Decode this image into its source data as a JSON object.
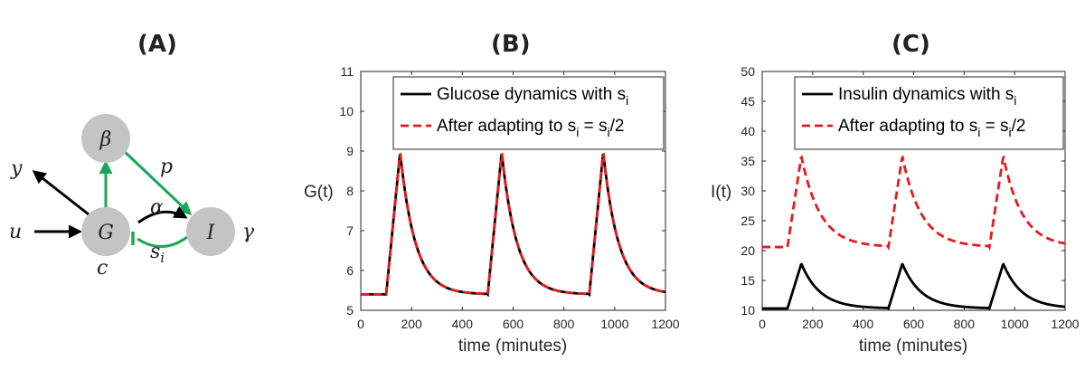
{
  "panels": {
    "a": "(A)",
    "b": "(B)",
    "c": "(C)"
  },
  "diagram": {
    "nodes": {
      "beta": "β",
      "g": "G",
      "i": "I"
    },
    "labels": {
      "y": "y",
      "u": "u",
      "p": "p",
      "alpha": "α",
      "s": "s",
      "s_sub": "i",
      "gamma": "γ",
      "c": "c"
    },
    "colors": {
      "node": "#c4c4c4",
      "green": "#1aa65a",
      "black": "#000000"
    }
  },
  "chart_data": [
    {
      "type": "line",
      "panel": "B",
      "xlabel": "time (minutes)",
      "ylabel": "G(t)",
      "xlim": [
        0,
        1200
      ],
      "ylim": [
        5,
        11
      ],
      "xticks": [
        0,
        200,
        400,
        600,
        800,
        1000,
        1200
      ],
      "yticks": [
        5,
        6,
        7,
        8,
        9,
        10,
        11
      ],
      "baseline": 5.4,
      "peak": 8.97,
      "meal_starts": [
        100,
        500,
        900
      ],
      "rise_minutes": 55,
      "decay_tau": 60,
      "legend": [
        {
          "name": "Glucose dynamics with s",
          "sub": "i",
          "tail": "",
          "color": "#000000",
          "dash": "solid"
        },
        {
          "name": "After adapting to s",
          "sub": "i",
          "tail": " = s",
          "sub2": "i",
          "tail2": "/2",
          "color": "#e8191c",
          "dash": "dashed"
        }
      ],
      "series": [
        {
          "name": "Glucose dynamics with s_i",
          "color": "#000000",
          "style": "solid"
        },
        {
          "name": "After adapting to s_i = s_i/2",
          "color": "#e8191c",
          "style": "dashed"
        }
      ]
    },
    {
      "type": "line",
      "panel": "C",
      "xlabel": "time (minutes)",
      "ylabel": "I(t)",
      "xlim": [
        0,
        1200
      ],
      "ylim": [
        10,
        50
      ],
      "xticks": [
        0,
        200,
        400,
        600,
        800,
        1000,
        1200
      ],
      "yticks": [
        10,
        15,
        20,
        25,
        30,
        35,
        40,
        45,
        50
      ],
      "meal_starts": [
        100,
        500,
        900
      ],
      "rise_minutes": 55,
      "decay_tau": 75,
      "legend": [
        {
          "name": "Insulin dynamics with s",
          "sub": "i",
          "tail": "",
          "color": "#000000",
          "dash": "solid"
        },
        {
          "name": "After adapting to s",
          "sub": "i",
          "tail": " = s",
          "sub2": "i",
          "tail2": "/2",
          "color": "#e8191c",
          "dash": "dashed"
        }
      ],
      "series": [
        {
          "name": "Insulin dynamics with s_i",
          "color": "#000000",
          "style": "solid",
          "baseline": 10.3,
          "peak": 17.8
        },
        {
          "name": "After adapting to s_i = s_i/2",
          "color": "#e8191c",
          "style": "dashed",
          "baseline": 20.6,
          "peak": 35.8
        }
      ]
    }
  ]
}
